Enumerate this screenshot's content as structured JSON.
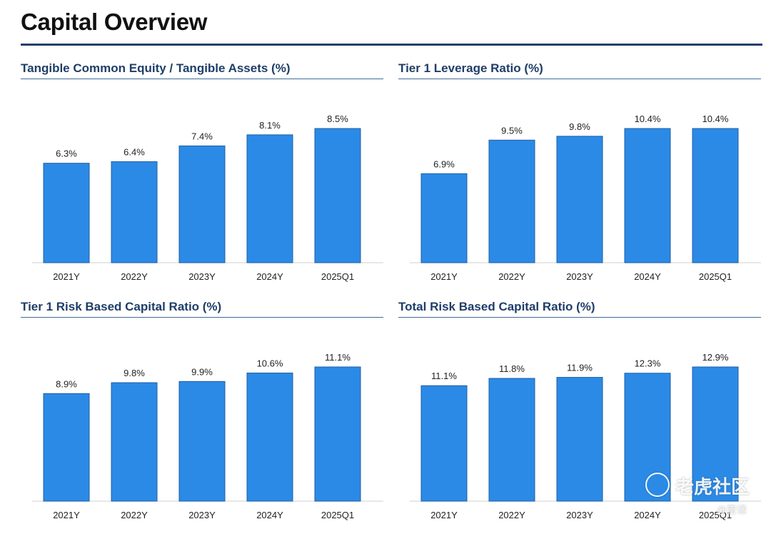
{
  "page": {
    "title": "Capital Overview"
  },
  "chart_data": [
    {
      "type": "bar",
      "title": "Tangible Common Equity / Tangible Assets (%)",
      "categories": [
        "2021Y",
        "2022Y",
        "2023Y",
        "2024Y",
        "2025Q1"
      ],
      "values": [
        6.3,
        6.4,
        7.4,
        8.1,
        8.5
      ],
      "labels": [
        "6.3%",
        "6.4%",
        "7.4%",
        "8.1%",
        "8.5%"
      ],
      "bar_color": "#2b8ae6",
      "grid": false
    },
    {
      "type": "bar",
      "title": "Tier 1 Leverage Ratio (%)",
      "categories": [
        "2021Y",
        "2022Y",
        "2023Y",
        "2024Y",
        "2025Q1"
      ],
      "values": [
        6.9,
        9.5,
        9.8,
        10.4,
        10.4
      ],
      "labels": [
        "6.9%",
        "9.5%",
        "9.8%",
        "10.4%",
        "10.4%"
      ],
      "bar_color": "#2b8ae6",
      "grid": false
    },
    {
      "type": "bar",
      "title": "Tier 1 Risk Based Capital Ratio (%)",
      "categories": [
        "2021Y",
        "2022Y",
        "2023Y",
        "2024Y",
        "2025Q1"
      ],
      "values": [
        8.9,
        9.8,
        9.9,
        10.6,
        11.1
      ],
      "labels": [
        "8.9%",
        "9.8%",
        "9.9%",
        "10.6%",
        "11.1%"
      ],
      "bar_color": "#2b8ae6",
      "grid": false
    },
    {
      "type": "bar",
      "title": "Total Risk Based Capital Ratio (%)",
      "categories": [
        "2021Y",
        "2022Y",
        "2023Y",
        "2024Y",
        "2025Q1"
      ],
      "values": [
        11.1,
        11.8,
        11.9,
        12.3,
        12.9
      ],
      "labels": [
        "11.1%",
        "11.8%",
        "11.9%",
        "12.3%",
        "12.9%"
      ],
      "bar_color": "#2b8ae6",
      "grid": false
    }
  ],
  "watermark": {
    "brand": "老虎社区",
    "handle": "@雷递"
  }
}
